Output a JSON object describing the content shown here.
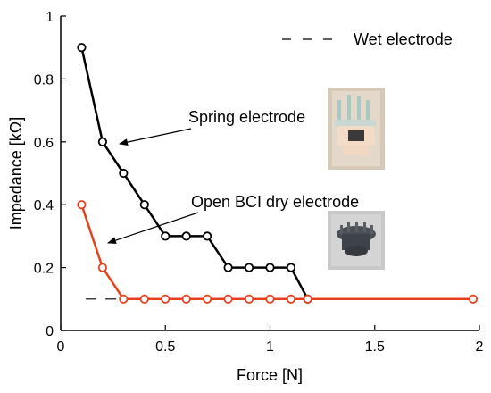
{
  "chart_data": {
    "type": "line",
    "xlabel": "Force [N]",
    "ylabel": "Impedance [kΩ]",
    "xlim": [
      0,
      2
    ],
    "ylim": [
      0,
      1
    ],
    "x_ticks": [
      "0",
      "0.5",
      "1",
      "1.5",
      "2"
    ],
    "y_ticks": [
      "0",
      "0.2",
      "0.4",
      "0.6",
      "0.8",
      "1"
    ],
    "grid": false,
    "series": [
      {
        "name": "Spring electrode",
        "color": "#000000",
        "marker": "open-circle",
        "points": [
          [
            0.1,
            0.9
          ],
          [
            0.2,
            0.6
          ],
          [
            0.3,
            0.5
          ],
          [
            0.4,
            0.4
          ],
          [
            0.5,
            0.3
          ],
          [
            0.6,
            0.3
          ],
          [
            0.7,
            0.3
          ],
          [
            0.8,
            0.2
          ],
          [
            0.9,
            0.2
          ],
          [
            1.0,
            0.2
          ],
          [
            1.1,
            0.2
          ],
          [
            1.18,
            0.1
          ]
        ]
      },
      {
        "name": "Open BCI dry electrode",
        "color": "#e8401c",
        "marker": "open-circle",
        "points": [
          [
            0.1,
            0.4
          ],
          [
            0.2,
            0.2
          ],
          [
            0.3,
            0.1
          ],
          [
            0.4,
            0.1
          ],
          [
            0.5,
            0.1
          ],
          [
            0.6,
            0.1
          ],
          [
            0.7,
            0.1
          ],
          [
            0.8,
            0.1
          ],
          [
            0.9,
            0.1
          ],
          [
            1.0,
            0.1
          ],
          [
            1.1,
            0.1
          ],
          [
            1.18,
            0.1
          ],
          [
            1.97,
            0.1
          ]
        ]
      }
    ],
    "reference": {
      "name": "Wet electrode",
      "value": 0.1,
      "style": "dashed",
      "color": "#000000"
    },
    "legend": {
      "position": "top-right",
      "label": "Wet electrode"
    },
    "annotations": [
      {
        "text": "Spring electrode",
        "points_to": [
          0.28,
          0.6
        ]
      },
      {
        "text": "Open BCI dry electrode",
        "points_to": [
          0.22,
          0.33
        ]
      }
    ],
    "images": [
      {
        "name": "spring-electrode-photo"
      },
      {
        "name": "dry-electrode-photo"
      }
    ]
  }
}
